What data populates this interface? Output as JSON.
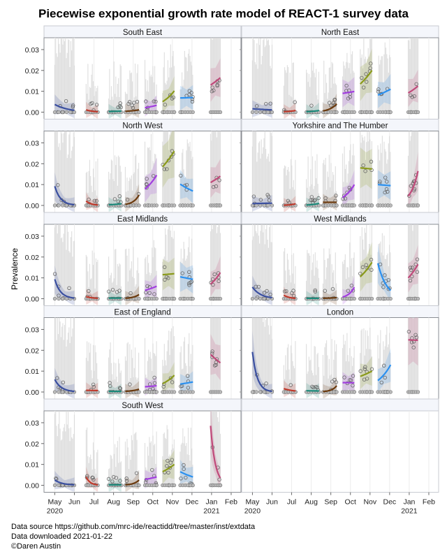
{
  "chart_data": {
    "type": "line",
    "title": "Piecewise exponential growth rate model of REACT-1 survey data",
    "ylabel": "Prevalence",
    "xlabel": "",
    "ylim": [
      0,
      0.033
    ],
    "yticks": [
      "0.00",
      "0.01",
      "0.02",
      "0.03"
    ],
    "ytick_values": [
      0,
      0.01,
      0.02,
      0.03
    ],
    "xticks": [
      {
        "label": "May",
        "sub": "2020",
        "month": 0
      },
      {
        "label": "Jun",
        "sub": "",
        "month": 1
      },
      {
        "label": "Jul",
        "sub": "",
        "month": 2
      },
      {
        "label": "Aug",
        "sub": "",
        "month": 3
      },
      {
        "label": "Sep",
        "sub": "",
        "month": 4
      },
      {
        "label": "Oct",
        "sub": "",
        "month": 5
      },
      {
        "label": "Nov",
        "sub": "",
        "month": 6
      },
      {
        "label": "Dec",
        "sub": "",
        "month": 7
      },
      {
        "label": "Jan",
        "sub": "2021",
        "month": 8
      },
      {
        "label": "Feb",
        "sub": "",
        "month": 9
      }
    ],
    "xlim_months": [
      -0.55,
      9.5
    ],
    "grid": true,
    "rounds": [
      {
        "round": 1,
        "start": 0.0,
        "end": 1.0,
        "color": "#3a4fa0"
      },
      {
        "round": 2,
        "start": 1.6,
        "end": 2.2,
        "color": "#c0392b"
      },
      {
        "round": 3,
        "start": 2.75,
        "end": 3.4,
        "color": "#1a8a7a"
      },
      {
        "round": 4,
        "start": 3.6,
        "end": 4.3,
        "color": "#6b3a0e"
      },
      {
        "round": 5,
        "start": 4.6,
        "end": 5.2,
        "color": "#a23de0"
      },
      {
        "round": 6,
        "start": 5.5,
        "end": 6.1,
        "color": "#8a9a1a"
      },
      {
        "round": 7,
        "start": 6.4,
        "end": 7.05,
        "color": "#2a90f0"
      },
      {
        "round": 8,
        "start": 7.95,
        "end": 8.45,
        "color": "#c04a7a"
      }
    ],
    "panels": [
      {
        "name": "South East",
        "fits": [
          [
            0.0037,
            0.0009
          ],
          [
            0.0011,
            0.0002
          ],
          [
            0.0003,
            0.0005
          ],
          [
            0.0004,
            0.0011
          ],
          [
            0.0021,
            0.0033
          ],
          [
            0.005,
            0.0102
          ],
          [
            0.0068,
            0.007
          ],
          [
            0.013,
            0.0165
          ]
        ]
      },
      {
        "name": "North East",
        "fits": [
          [
            0.0016,
            0.0011
          ],
          [
            0.0002,
            0.0008
          ],
          [
            0.0002,
            0.0008
          ],
          [
            0.0006,
            0.004
          ],
          [
            0.009,
            0.0099
          ],
          [
            0.0135,
            0.02
          ],
          [
            0.0082,
            0.011
          ],
          [
            0.0092,
            0.0125
          ]
        ]
      },
      {
        "name": "North West",
        "fits": [
          [
            0.0092,
            0.0003
          ],
          [
            0.0021,
            0.0002
          ],
          [
            0.0003,
            0.0008
          ],
          [
            0.0005,
            0.005
          ],
          [
            0.0078,
            0.0145
          ],
          [
            0.0185,
            0.026
          ],
          [
            0.0102,
            0.0069
          ],
          [
            0.011,
            0.014
          ]
        ]
      },
      {
        "name": "Yorkshire and The Humber",
        "fits": [
          [
            0.0009,
            0.0011
          ],
          [
            0.0001,
            0.0008
          ],
          [
            0.0002,
            0.001
          ],
          [
            0.0015,
            0.0015
          ],
          [
            0.0038,
            0.01
          ],
          [
            0.018,
            0.0175
          ],
          [
            0.01,
            0.0095
          ],
          [
            0.0045,
            0.0165
          ]
        ]
      },
      {
        "name": "East Midlands",
        "fits": [
          [
            0.0093,
            0.0003
          ],
          [
            0.001,
            0.0002
          ],
          [
            0.0003,
            0.0003
          ],
          [
            0.0002,
            0.002
          ],
          [
            0.004,
            0.006
          ],
          [
            0.0115,
            0.012
          ],
          [
            0.0105,
            0.0093
          ],
          [
            0.007,
            0.0125
          ]
        ]
      },
      {
        "name": "West Midlands",
        "fits": [
          [
            0.0056,
            0.0005
          ],
          [
            0.0017,
            0.0002
          ],
          [
            0.0002,
            0.0002
          ],
          [
            0.0002,
            0.0005
          ],
          [
            0.0008,
            0.0055
          ],
          [
            0.0105,
            0.0175
          ],
          [
            0.017,
            0.004
          ],
          [
            0.01,
            0.0165
          ]
        ]
      },
      {
        "name": "East of England",
        "fits": [
          [
            0.006,
            0.0003
          ],
          [
            0.0008,
            0.0007
          ],
          [
            0.0003,
            0.0003
          ],
          [
            0.0003,
            0.0013
          ],
          [
            0.0025,
            0.003
          ],
          [
            0.004,
            0.008
          ],
          [
            0.0038,
            0.0048
          ],
          [
            0.018,
            0.014
          ]
        ]
      },
      {
        "name": "London",
        "fits": [
          [
            0.0192,
            0.0003
          ],
          [
            0.0016,
            0.0005
          ],
          [
            0.0006,
            0.0005
          ],
          [
            0.0002,
            0.003
          ],
          [
            0.0045,
            0.0044
          ],
          [
            0.0075,
            0.01
          ],
          [
            0.0055,
            0.013
          ],
          [
            0.025,
            0.0248
          ]
        ]
      },
      {
        "name": "South West",
        "fits": [
          [
            0.0025,
            0.0002
          ],
          [
            0.004,
            0.0002
          ],
          [
            0.0002,
            0.0002
          ],
          [
            0.0002,
            0.0025
          ],
          [
            0.0028,
            0.004
          ],
          [
            0.0065,
            0.01
          ],
          [
            0.0065,
            0.004
          ],
          [
            0.0285,
            0.0035
          ]
        ]
      }
    ]
  },
  "footer": {
    "source": "Data source https://github.com/mrc-ide/reactidd/tree/master/inst/extdata",
    "downloaded": "Data downloaded 2021-01-22",
    "credit": "©Daren Austin"
  }
}
